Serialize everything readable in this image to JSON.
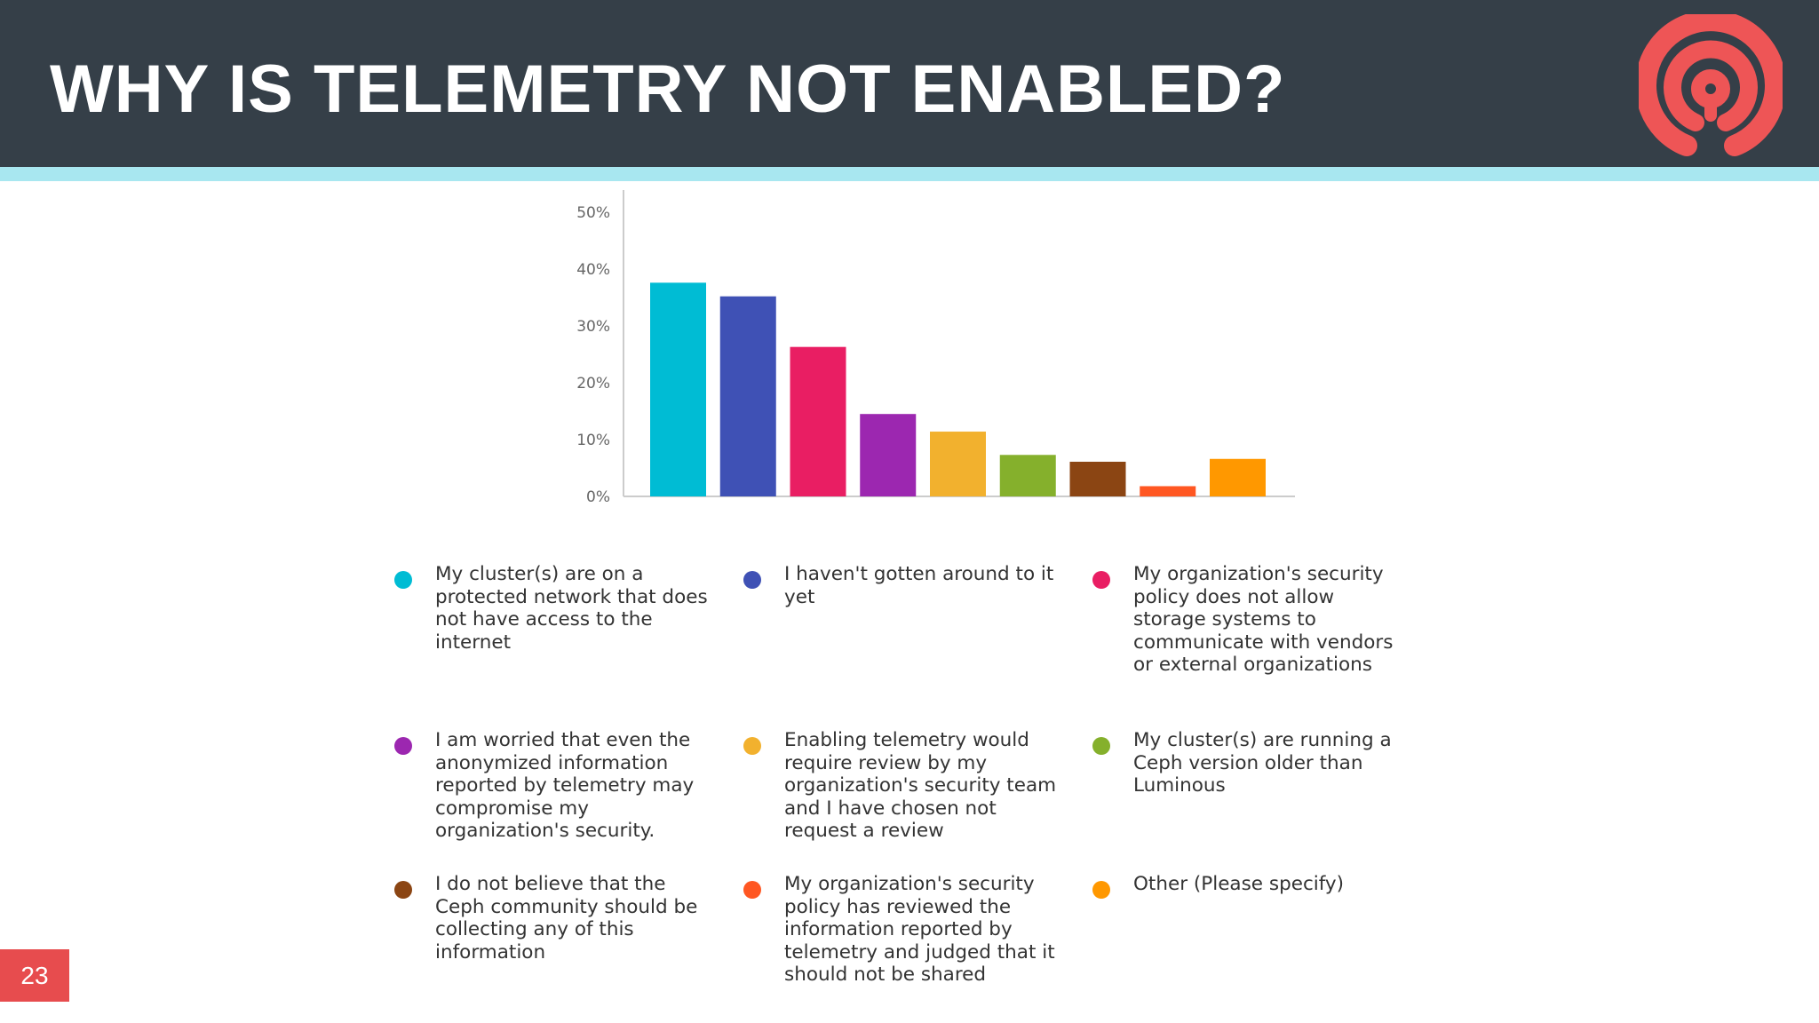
{
  "slide": {
    "title": "WHY IS TELEMETRY NOT ENABLED?",
    "page_number": "23",
    "logo_icon": "ceph-logo-icon",
    "colors": {
      "header": "#353f48",
      "accent_band": "#a8e7f0",
      "logo": "#ee5556",
      "page_badge": "#e74c4e"
    }
  },
  "chart_data": {
    "type": "bar",
    "title": "",
    "xlabel": "",
    "ylabel": "",
    "ylim": [
      0,
      50
    ],
    "yticks": [
      "0%",
      "10%",
      "20%",
      "30%",
      "40%",
      "50%"
    ],
    "grid": false,
    "legend_position": "bottom",
    "categories": [
      "My cluster(s) are on a protected network that does not have access to the internet",
      "I haven't gotten around to it yet",
      "My organization's security policy does not allow storage systems to communicate with vendors or external organizations",
      "I am worried that even the anonymized information reported by telemetry may compromise my organization's security.",
      "Enabling telemetry would require review by my organization's security team and I have chosen not request a review",
      "My cluster(s) are running a Ceph version older than Luminous",
      "I do not believe that the Ceph community should be collecting any of this information",
      "My organization's security policy has reviewed the information reported by telemetry and judged that it should not be shared",
      "Other (Please specify)"
    ],
    "values": [
      37.6,
      35.2,
      26.3,
      14.5,
      11.4,
      7.3,
      6.1,
      1.8,
      6.6
    ],
    "colors": [
      "#00bcd4",
      "#3f51b5",
      "#e91e63",
      "#9c27b0",
      "#f2b12e",
      "#85b02c",
      "#8b4513",
      "#ff5722",
      "#ff9800"
    ]
  }
}
